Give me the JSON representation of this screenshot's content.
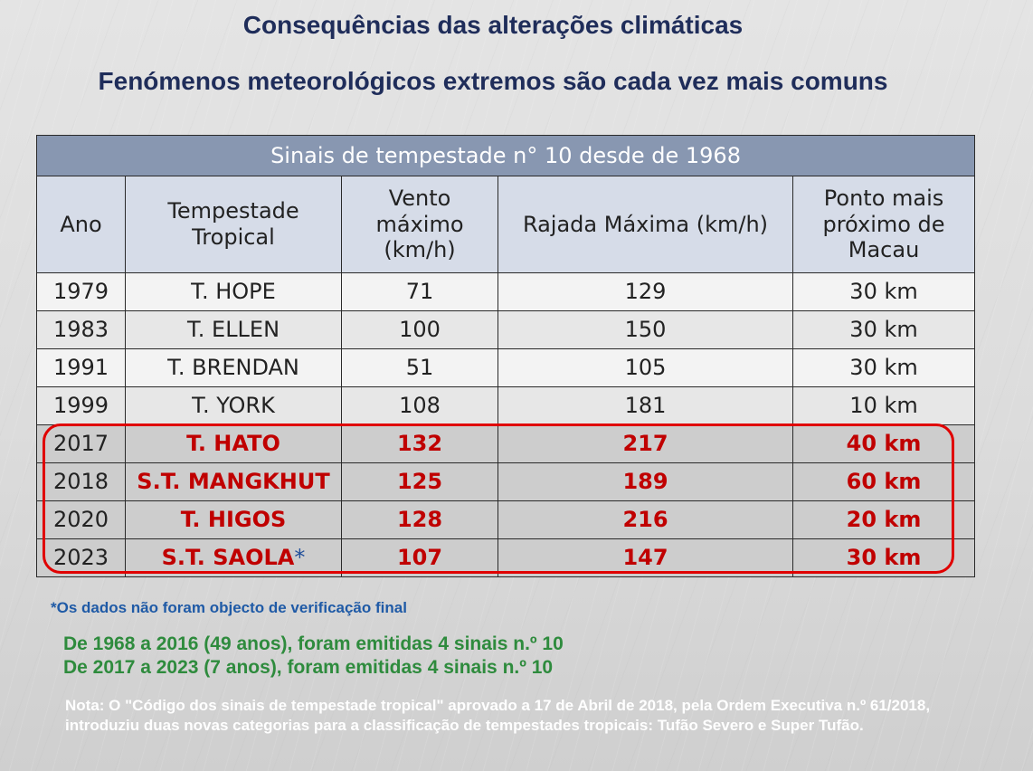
{
  "title": "Consequências das alterações climáticas",
  "subtitle": "Fenómenos meteorológicos extremos são cada vez mais comuns",
  "table": {
    "banner": "Sinais de tempestade n° 10 desde de 1968",
    "headers": [
      "Ano",
      "Tempestade Tropical",
      "Vento máximo (km/h)",
      "Rajada Máxima (km/h)",
      "Ponto mais próximo de Macau"
    ],
    "rows": [
      [
        "1979",
        "T. HOPE",
        "71",
        "129",
        "30 km"
      ],
      [
        "1983",
        "T. ELLEN",
        "100",
        "150",
        "30 km"
      ],
      [
        "1991",
        "T. BRENDAN",
        "51",
        "105",
        "30 km"
      ],
      [
        "1999",
        "T. YORK",
        "108",
        "181",
        "10 km"
      ],
      [
        "2017",
        "T. HATO",
        "132",
        "217",
        "40 km"
      ],
      [
        "2018",
        "S.T. MANGKHUT",
        "125",
        "189",
        "60 km"
      ],
      [
        "2020",
        "T. HIGOS",
        "128",
        "216",
        "20 km"
      ],
      [
        "2023",
        "S.T. SAOLA",
        "107",
        "147",
        "30 km"
      ]
    ],
    "asterisk": "*"
  },
  "footnote": "*Os dados não foram objecto de verificação final",
  "summary": [
    "De 1968 a 2016 (49 anos), foram emitidas 4 sinais n.º 10",
    "De 2017 a 2023 (7 anos), foram emitidas 4 sinais n.º 10"
  ],
  "note": "Nota: O \"Código dos sinais de tempestade tropical\" aprovado a 17 de Abril de 2018, pela Ordem Executiva n.º 61/2018, introduziu duas novas categorias para a classificação de tempestades tropicais: Tufão Severo e Super Tufão.",
  "colors": {
    "title": "#1f2d5a",
    "banner": "#8897b1",
    "header": "#d6dce8",
    "highlight_text": "#c00000",
    "highlight_border": "#e00000",
    "footnote": "#1f5aa6",
    "summary": "#2e8b3d"
  }
}
